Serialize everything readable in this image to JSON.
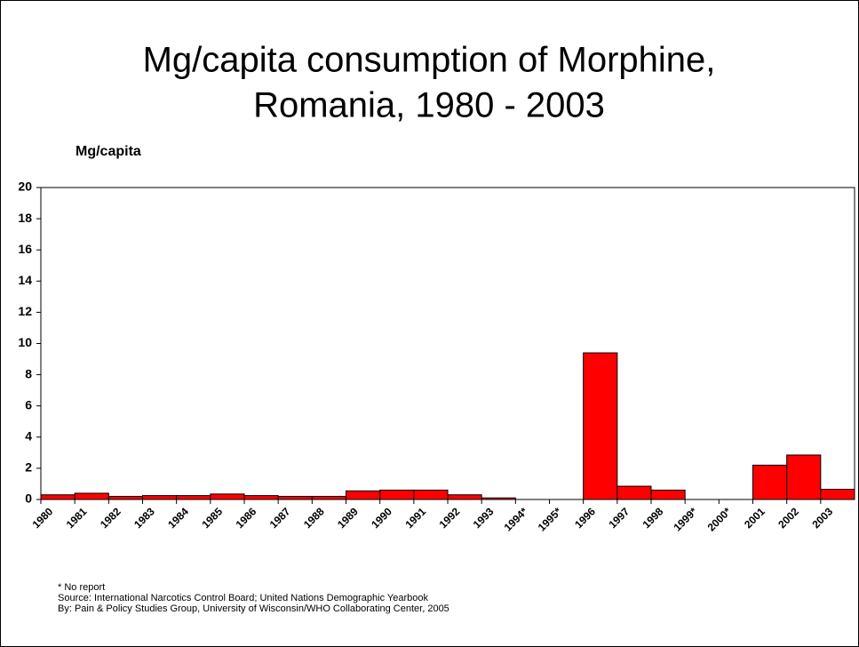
{
  "chart_data": {
    "type": "bar",
    "title_lines": [
      "Mg/capita consumption of Morphine,",
      "Romania, 1980 - 2003"
    ],
    "y_label": "Mg/capita",
    "categories": [
      "1980",
      "1981",
      "1982",
      "1983",
      "1984",
      "1985",
      "1986",
      "1987",
      "1988",
      "1989",
      "1990",
      "1991",
      "1992",
      "1993",
      "1994*",
      "1995*",
      "1996",
      "1997",
      "1998",
      "1999*",
      "2000*",
      "2001",
      "2002",
      "2003"
    ],
    "values": [
      0.3,
      0.4,
      0.2,
      0.25,
      0.25,
      0.35,
      0.25,
      0.2,
      0.2,
      0.55,
      0.6,
      0.6,
      0.3,
      0.1,
      null,
      null,
      9.4,
      0.85,
      0.6,
      null,
      null,
      2.2,
      2.85,
      0.65
    ],
    "color": "#ff0000",
    "ylim": [
      0,
      20
    ],
    "yticks": [
      0,
      2,
      4,
      6,
      8,
      10,
      12,
      14,
      16,
      18,
      20
    ],
    "notes": [
      "* No report",
      "Source: International Narcotics Control Board; United Nations Demographic Yearbook",
      "By: Pain & Policy Studies Group, University of Wisconsin/WHO Collaborating Center,  2005"
    ]
  }
}
